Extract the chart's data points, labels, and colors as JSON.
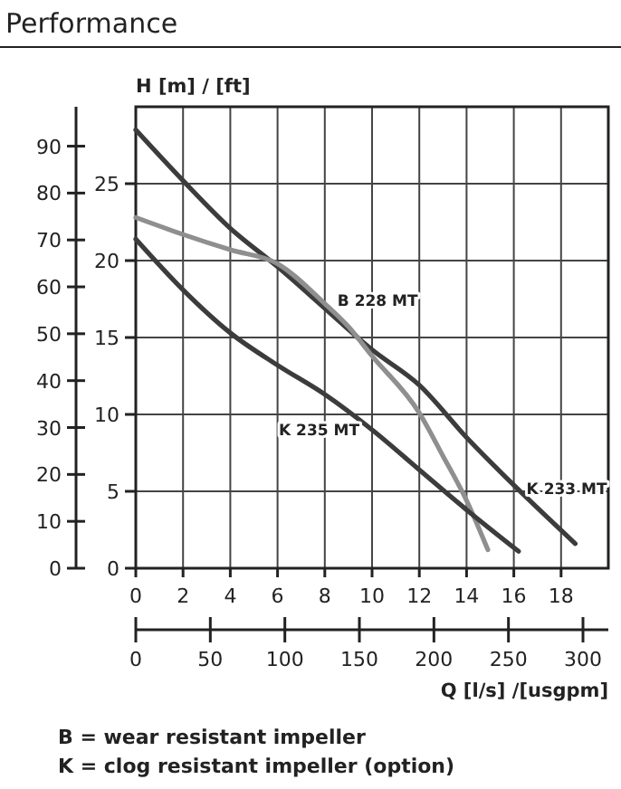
{
  "chart_data": {
    "type": "line",
    "title": "Performance",
    "xlabel": "Q [l/s] /[usgpm]",
    "ylabel": "H [m] / [ft]",
    "xlim": [
      0,
      20
    ],
    "xticks": [
      0,
      2,
      4,
      6,
      8,
      10,
      12,
      14,
      16,
      18
    ],
    "x2lim": [
      0,
      317
    ],
    "x2ticks": [
      0,
      50,
      100,
      150,
      200,
      250,
      300
    ],
    "ylim": [
      0,
      30
    ],
    "yticks": [
      0,
      5,
      10,
      15,
      20,
      25
    ],
    "y2lim": [
      0,
      98.4
    ],
    "y2ticks": [
      0,
      10,
      20,
      30,
      40,
      50,
      60,
      70,
      80,
      90
    ],
    "grid": true,
    "line_style": "solid",
    "marker": "none",
    "series": [
      {
        "color": "#3c3c3c",
        "x": [
          0,
          2,
          4,
          6,
          8,
          10,
          12,
          14,
          16,
          18.6
        ],
        "values": [
          28.5,
          25.2,
          22.1,
          19.6,
          16.9,
          14.2,
          11.9,
          8.5,
          5.4,
          1.6
        ]
      },
      {
        "color": "#8f8f8f",
        "x": [
          0,
          2,
          4,
          6,
          8,
          9,
          10,
          12,
          13,
          14,
          14.9
        ],
        "values": [
          22.8,
          21.7,
          20.7,
          19.8,
          17.2,
          15.7,
          13.8,
          10.1,
          7.3,
          4.4,
          1.2
        ]
      },
      {
        "color": "#3c3c3c",
        "x": [
          0,
          2,
          4,
          6,
          8,
          10,
          12,
          14,
          16.2
        ],
        "values": [
          21.4,
          18.1,
          15.3,
          13.2,
          11.3,
          9,
          6.4,
          3.8,
          1.1
        ]
      }
    ],
    "annotations": [
      {
        "text": "B 228 MT",
        "x": 8,
        "y": 17.2
      },
      {
        "text": "K 235 MT",
        "x": 10,
        "y": 9
      },
      {
        "text": "K 233 MT",
        "x": 16,
        "y": 5.4
      },
      "B = wear resistant impeller",
      "K = clog resistant impeller (option)"
    ]
  }
}
